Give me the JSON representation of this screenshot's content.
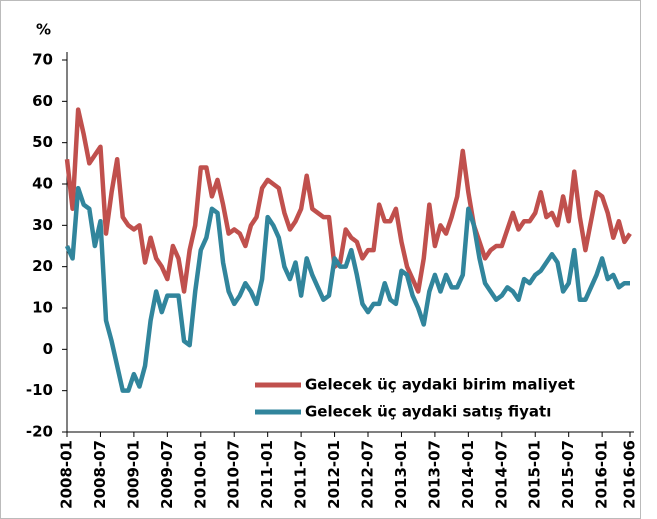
{
  "chart_data": {
    "type": "line",
    "y_label": "%",
    "categories": [
      "2008-01",
      null,
      null,
      null,
      null,
      null,
      "2008-07",
      null,
      null,
      null,
      null,
      null,
      "2009-01",
      null,
      null,
      null,
      null,
      null,
      "2009-07",
      null,
      null,
      null,
      null,
      null,
      "2010-01",
      null,
      null,
      null,
      null,
      null,
      "2010-07",
      null,
      null,
      null,
      null,
      null,
      "2011-01",
      null,
      null,
      null,
      null,
      null,
      "2011-07",
      null,
      null,
      null,
      null,
      null,
      "2012-01",
      null,
      null,
      null,
      null,
      null,
      "2012-07",
      null,
      null,
      null,
      null,
      null,
      "2013-01",
      null,
      null,
      null,
      null,
      null,
      "2013-07",
      null,
      null,
      null,
      null,
      null,
      "2014-01",
      null,
      null,
      null,
      null,
      null,
      "2014-07",
      null,
      null,
      null,
      null,
      null,
      "2015-01",
      null,
      null,
      null,
      null,
      null,
      "2015-07",
      null,
      null,
      null,
      null,
      null,
      "2016-01",
      null,
      null,
      null,
      null,
      "2016-06"
    ],
    "series": [
      {
        "name": "Gelecek üç aydaki birim maliyet",
        "color": "#c0504d",
        "values": [
          46,
          34,
          58,
          52,
          45,
          47,
          49,
          28,
          38,
          46,
          32,
          30,
          29,
          30,
          21,
          27,
          22,
          20,
          17,
          25,
          22,
          14,
          24,
          30,
          44,
          44,
          37,
          41,
          35,
          28,
          29,
          28,
          25,
          30,
          32,
          39,
          41,
          40,
          39,
          33,
          29,
          31,
          34,
          42,
          34,
          33,
          32,
          32,
          20,
          21,
          29,
          27,
          26,
          22,
          24,
          24,
          35,
          31,
          31,
          34,
          26,
          20,
          17,
          14,
          22,
          35,
          25,
          30,
          28,
          32,
          37,
          48,
          38,
          30,
          26,
          22,
          24,
          25,
          25,
          29,
          33,
          29,
          31,
          31,
          33,
          38,
          32,
          33,
          30,
          37,
          31,
          43,
          32,
          24,
          31,
          38,
          37,
          33,
          27,
          31,
          26,
          28
        ]
      },
      {
        "name": "Gelecek üç aydaki satış fiyatı",
        "color": "#31859c",
        "values": [
          25,
          22,
          39,
          35,
          34,
          25,
          31,
          7,
          2,
          -4,
          -10,
          -10,
          -6,
          -9,
          -4,
          7,
          14,
          9,
          13,
          13,
          13,
          2,
          1,
          14,
          24,
          27,
          34,
          33,
          21,
          14,
          11,
          13,
          16,
          14,
          11,
          17,
          32,
          30,
          27,
          20,
          17,
          21,
          13,
          22,
          18,
          15,
          12,
          13,
          22,
          20,
          20,
          24,
          18,
          11,
          9,
          11,
          11,
          16,
          12,
          11,
          19,
          18,
          13,
          10,
          6,
          14,
          18,
          14,
          18,
          15,
          15,
          18,
          34,
          30,
          22,
          16,
          14,
          12,
          13,
          15,
          14,
          12,
          17,
          16,
          18,
          19,
          21,
          23,
          21,
          14,
          16,
          24,
          12,
          12,
          15,
          18,
          22,
          17,
          18,
          15,
          16,
          16
        ]
      }
    ],
    "ylim": [
      -20,
      70
    ],
    "yticks": [
      -20,
      -10,
      0,
      10,
      20,
      30,
      40,
      50,
      60,
      70
    ],
    "legend": "lower right"
  }
}
